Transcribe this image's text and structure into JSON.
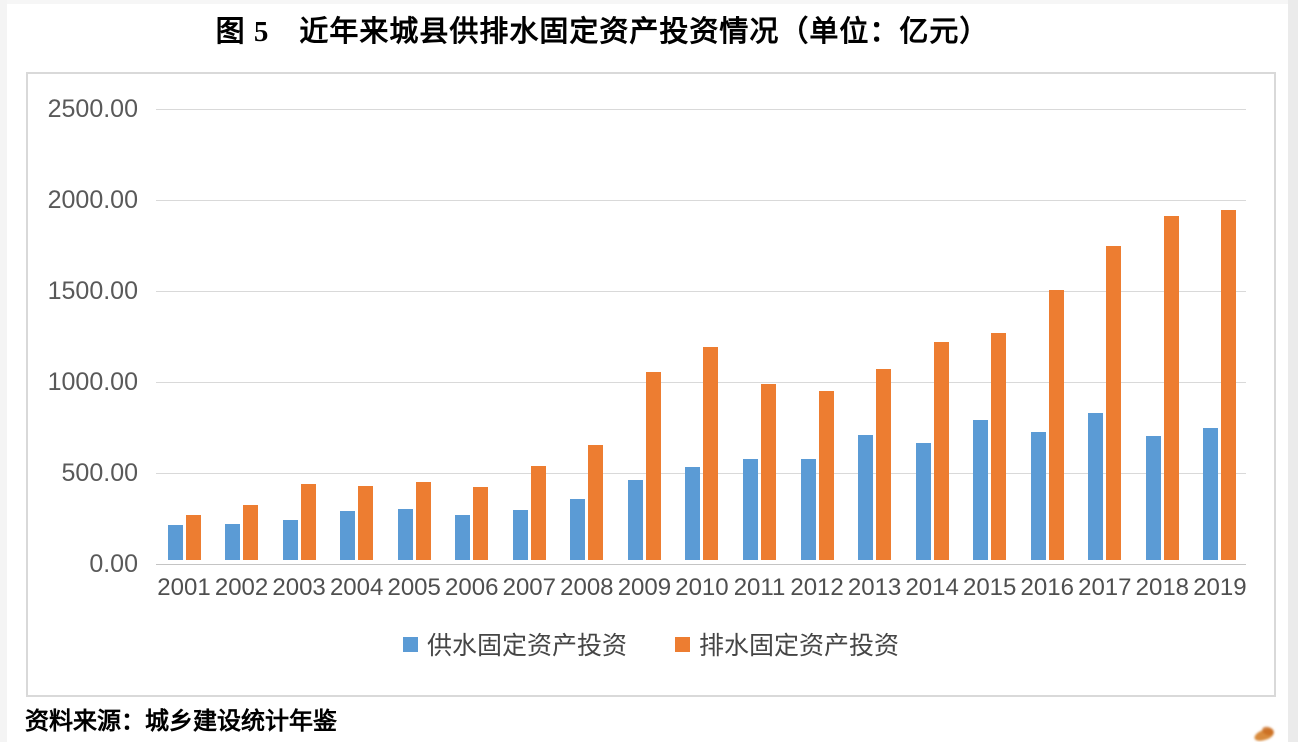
{
  "page": {
    "title": "图 5　近年来城县供排水固定资产投资情况（单位：亿元）",
    "source_note": "资料来源：城乡建设统计年鉴"
  },
  "chart_data": {
    "type": "bar",
    "title": "图 5 近年来城县供排水固定资产投资情况",
    "unit": "亿元",
    "categories": [
      "2001",
      "2002",
      "2003",
      "2004",
      "2005",
      "2006",
      "2007",
      "2008",
      "2009",
      "2010",
      "2011",
      "2012",
      "2013",
      "2014",
      "2015",
      "2016",
      "2017",
      "2018",
      "2019"
    ],
    "series": [
      {
        "name": "供水固定资产投资",
        "color": "#5B9BD5",
        "values": [
          195,
          200,
          220,
          267,
          283,
          250,
          277,
          338,
          440,
          511,
          557,
          553,
          685,
          641,
          770,
          702,
          806,
          680,
          724
        ]
      },
      {
        "name": "排水固定资产投资",
        "color": "#ED7D31",
        "values": [
          245,
          305,
          418,
          405,
          430,
          403,
          516,
          632,
          1031,
          1170,
          967,
          929,
          1050,
          1197,
          1248,
          1483,
          1727,
          1892,
          1925
        ]
      }
    ],
    "ylim": [
      0,
      2500
    ],
    "ytick_step": 500,
    "ytick_labels": [
      "0.00",
      "500.00",
      "1000.00",
      "1500.00",
      "2000.00",
      "2500.00"
    ],
    "grid": true,
    "legend_position": "bottom",
    "colors": {
      "grid": "#d9d9d9",
      "axis": "#c4c4c4",
      "tick_text": "#595959"
    }
  }
}
